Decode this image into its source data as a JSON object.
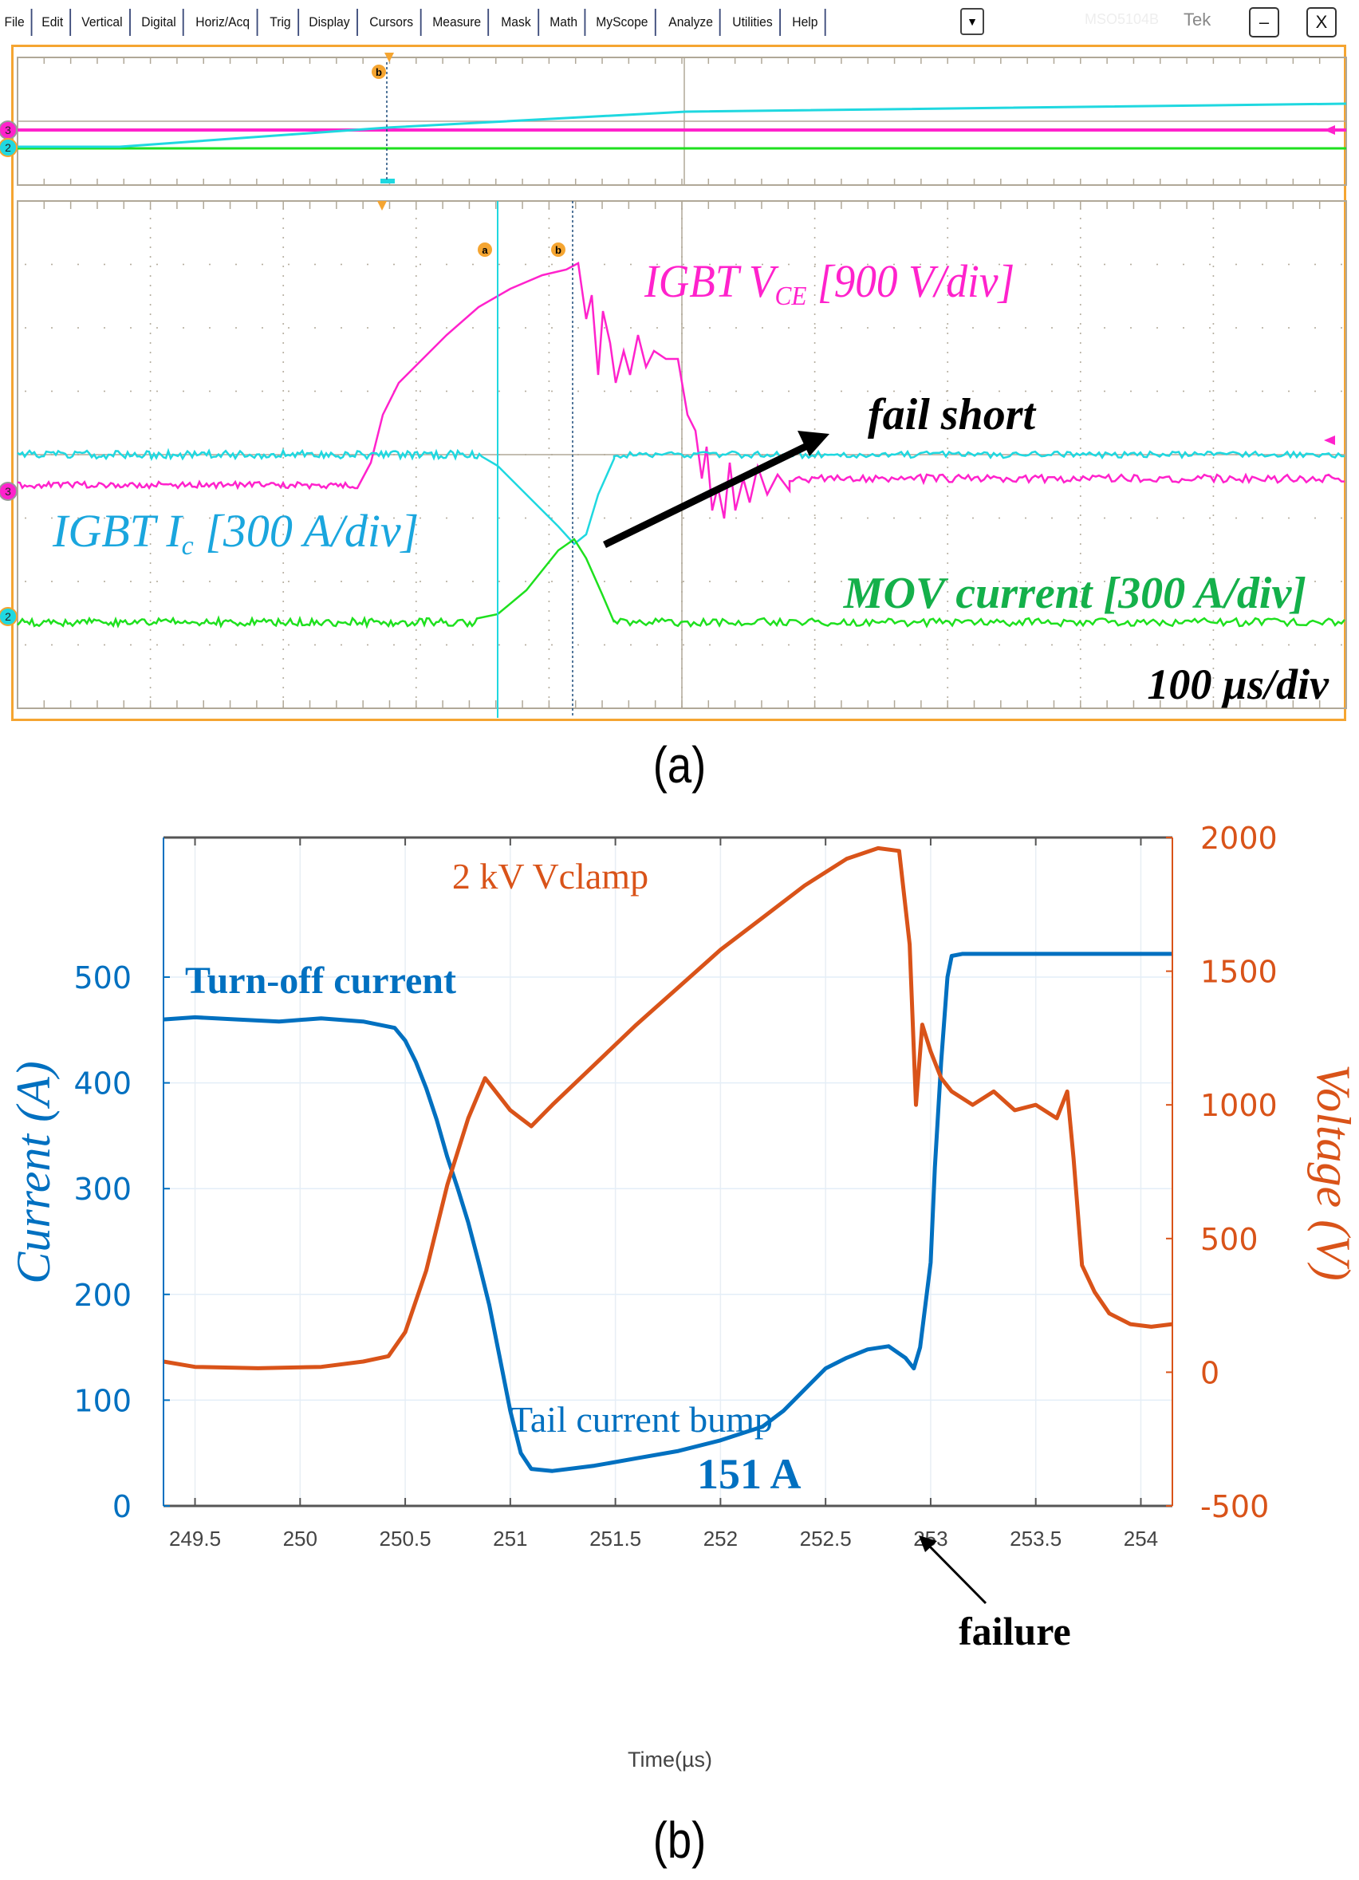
{
  "scope": {
    "menu": [
      "File",
      "Edit",
      "Vertical",
      "Digital",
      "Horiz/Acq",
      "Trig",
      "Display",
      "Cursors",
      "Measure",
      "Mask",
      "Math",
      "MyScope",
      "Analyze",
      "Utilities",
      "Help"
    ],
    "dropdown_icon": "▼",
    "model": "MSO5104B",
    "brand": "Tek",
    "minimize_icon": "–",
    "close_icon": "X",
    "cursor_labels": {
      "a": "a",
      "b": "b"
    },
    "channel_markers": {
      "ch3": "3",
      "ch2": "2"
    },
    "colors": {
      "frame": "#f5a531",
      "vce": "#ff22cc",
      "ic": "#1fd8e0",
      "mov": "#1ee01e",
      "grid": "#b0a898"
    },
    "annotations": {
      "vce_main": "IGBT V",
      "vce_sub": "CE",
      "vce_unit": " [900 V/div]",
      "ic_main": "IGBT I",
      "ic_sub": "c",
      "ic_unit": " [300 A/div]",
      "mov": "MOV current [300 A/div]",
      "fail": "fail short",
      "timebase": "100 µs/div"
    }
  },
  "caption_a": "(a)",
  "caption_b": "(b)",
  "chart_data": {
    "type": "line",
    "title": "",
    "xlabel": "Time(µs)",
    "ylabel_left": "Current (A)",
    "ylabel_right": "Voltage (V)",
    "xlim": [
      249.35,
      254.15
    ],
    "ylim_left": [
      0,
      632
    ],
    "ylim_right": [
      -500,
      2000
    ],
    "x_ticks": [
      249.5,
      250,
      250.5,
      251,
      251.5,
      252,
      252.5,
      253,
      253.5,
      254
    ],
    "x_tick_labels": [
      "249.5",
      "250",
      "250.5",
      "251",
      "251.5",
      "252",
      "252.5",
      "253",
      "253.5",
      "254"
    ],
    "y_left_ticks": [
      0,
      100,
      200,
      300,
      400,
      500
    ],
    "y_left_tick_labels": [
      "0",
      "100",
      "200",
      "300",
      "400",
      "500"
    ],
    "y_right_ticks": [
      -500,
      0,
      500,
      1000,
      1500,
      2000
    ],
    "y_right_tick_labels": [
      "-500",
      "0",
      "500",
      "1000",
      "1500",
      "2000"
    ],
    "grid": true,
    "series": [
      {
        "name": "Turn-off current",
        "axis": "left",
        "color": "#0070c0",
        "x": [
          249.35,
          249.5,
          249.7,
          249.9,
          250.1,
          250.3,
          250.45,
          250.5,
          250.55,
          250.6,
          250.65,
          250.7,
          250.75,
          250.8,
          250.85,
          250.9,
          250.95,
          251.0,
          251.05,
          251.1,
          251.2,
          251.4,
          251.6,
          251.8,
          252.0,
          252.2,
          252.3,
          252.4,
          252.5,
          252.6,
          252.7,
          252.8,
          252.88,
          252.92,
          252.95,
          253.0,
          253.02,
          253.05,
          253.08,
          253.1,
          253.15,
          253.2,
          253.3,
          253.5,
          253.8,
          254.15
        ],
        "y": [
          460,
          462,
          460,
          458,
          461,
          458,
          452,
          440,
          420,
          395,
          365,
          330,
          300,
          268,
          230,
          190,
          140,
          90,
          50,
          35,
          33,
          38,
          45,
          52,
          62,
          75,
          90,
          110,
          130,
          140,
          148,
          151,
          140,
          130,
          150,
          230,
          320,
          420,
          500,
          520,
          522,
          522,
          522,
          522,
          522,
          522
        ]
      },
      {
        "name": "2 kV Vclamp",
        "axis": "right",
        "color": "#d95319",
        "x": [
          249.35,
          249.5,
          249.8,
          250.1,
          250.3,
          250.42,
          250.5,
          250.6,
          250.7,
          250.8,
          250.88,
          250.92,
          251.0,
          251.05,
          251.1,
          251.2,
          251.4,
          251.6,
          251.8,
          252.0,
          252.2,
          252.4,
          252.6,
          252.75,
          252.85,
          252.9,
          252.93,
          252.96,
          253.0,
          253.05,
          253.1,
          253.2,
          253.3,
          253.4,
          253.5,
          253.6,
          253.65,
          253.68,
          253.72,
          253.78,
          253.85,
          253.95,
          254.05,
          254.15
        ],
        "y": [
          40,
          20,
          15,
          20,
          40,
          60,
          150,
          380,
          700,
          950,
          1100,
          1060,
          980,
          950,
          920,
          1000,
          1150,
          1300,
          1440,
          1580,
          1700,
          1820,
          1920,
          1960,
          1950,
          1600,
          1000,
          1300,
          1200,
          1100,
          1050,
          1000,
          1050,
          980,
          1000,
          950,
          1050,
          800,
          400,
          300,
          220,
          180,
          170,
          180
        ]
      }
    ],
    "annotations": [
      {
        "text": "2 kV Vclamp",
        "color": "#d95319"
      },
      {
        "text": "Turn-off current",
        "color": "#0070c0"
      },
      {
        "text": "Tail current bump",
        "color": "#0070c0"
      },
      {
        "text": "151 A",
        "color": "#0070c0"
      },
      {
        "text": "failure",
        "color": "#000000",
        "arrow_to_x": 252.92,
        "arrow_to_y_left": 140
      }
    ]
  }
}
